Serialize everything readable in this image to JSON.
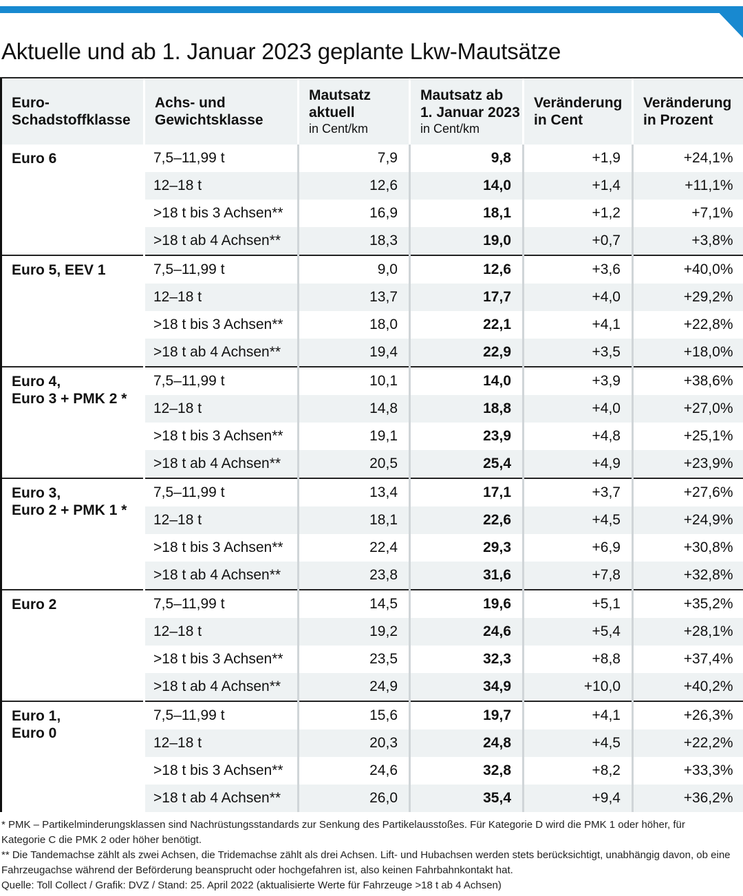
{
  "title": "Aktuelle und ab 1. Januar 2023 geplante Lkw-Mautsätze",
  "header": {
    "col1": "Euro-\nSchadstoffklasse",
    "col2": "Achs- und\nGewichtsklasse",
    "col3": "Mautsatz\naktuell",
    "col3_unit": "in Cent/km",
    "col4": "Mautsatz ab\n1. Januar 2023",
    "col4_unit": "in Cent/km",
    "col5": "Veränderung\nin Cent",
    "col6": "Veränderung\nin Prozent"
  },
  "groups": [
    {
      "label": "Euro 6",
      "rows": [
        {
          "cls": "7,5–11,99 t",
          "current": "7,9",
          "new": "9,8",
          "cent": "+1,9",
          "pct": "+24,1%"
        },
        {
          "cls": "12–18 t",
          "current": "12,6",
          "new": "14,0",
          "cent": "+1,4",
          "pct": "+11,1%"
        },
        {
          "cls": ">18 t bis 3 Achsen**",
          "current": "16,9",
          "new": "18,1",
          "cent": "+1,2",
          "pct": "+7,1%"
        },
        {
          "cls": ">18 t ab 4 Achsen**",
          "current": "18,3",
          "new": "19,0",
          "cent": "+0,7",
          "pct": "+3,8%"
        }
      ]
    },
    {
      "label": "Euro 5, EEV 1",
      "rows": [
        {
          "cls": "7,5–11,99 t",
          "current": "9,0",
          "new": "12,6",
          "cent": "+3,6",
          "pct": "+40,0%"
        },
        {
          "cls": "12–18 t",
          "current": "13,7",
          "new": "17,7",
          "cent": "+4,0",
          "pct": "+29,2%"
        },
        {
          "cls": ">18 t bis 3 Achsen**",
          "current": "18,0",
          "new": "22,1",
          "cent": "+4,1",
          "pct": "+22,8%"
        },
        {
          "cls": ">18 t ab 4 Achsen**",
          "current": "19,4",
          "new": "22,9",
          "cent": "+3,5",
          "pct": "+18,0%"
        }
      ]
    },
    {
      "label": "Euro 4,\nEuro 3 + PMK 2 *",
      "rows": [
        {
          "cls": "7,5–11,99 t",
          "current": "10,1",
          "new": "14,0",
          "cent": "+3,9",
          "pct": "+38,6%"
        },
        {
          "cls": "12–18 t",
          "current": "14,8",
          "new": "18,8",
          "cent": "+4,0",
          "pct": "+27,0%"
        },
        {
          "cls": ">18 t bis 3 Achsen**",
          "current": "19,1",
          "new": "23,9",
          "cent": "+4,8",
          "pct": "+25,1%"
        },
        {
          "cls": ">18 t ab 4 Achsen**",
          "current": "20,5",
          "new": "25,4",
          "cent": "+4,9",
          "pct": "+23,9%"
        }
      ]
    },
    {
      "label": "Euro 3,\nEuro 2 + PMK 1 *",
      "rows": [
        {
          "cls": "7,5–11,99 t",
          "current": "13,4",
          "new": "17,1",
          "cent": "+3,7",
          "pct": "+27,6%"
        },
        {
          "cls": "12–18 t",
          "current": "18,1",
          "new": "22,6",
          "cent": "+4,5",
          "pct": "+24,9%"
        },
        {
          "cls": ">18 t bis 3 Achsen**",
          "current": "22,4",
          "new": "29,3",
          "cent": "+6,9",
          "pct": "+30,8%"
        },
        {
          "cls": ">18 t ab 4 Achsen**",
          "current": "23,8",
          "new": "31,6",
          "cent": "+7,8",
          "pct": "+32,8%"
        }
      ]
    },
    {
      "label": "Euro 2",
      "rows": [
        {
          "cls": "7,5–11,99 t",
          "current": "14,5",
          "new": "19,6",
          "cent": "+5,1",
          "pct": "+35,2%"
        },
        {
          "cls": "12–18 t",
          "current": "19,2",
          "new": "24,6",
          "cent": "+5,4",
          "pct": "+28,1%"
        },
        {
          "cls": ">18 t bis 3 Achsen**",
          "current": "23,5",
          "new": "32,3",
          "cent": "+8,8",
          "pct": "+37,4%"
        },
        {
          "cls": ">18 t ab 4 Achsen**",
          "current": "24,9",
          "new": "34,9",
          "cent": "+10,0",
          "pct": "+40,2%"
        }
      ]
    },
    {
      "label": "Euro 1,\nEuro 0",
      "rows": [
        {
          "cls": "7,5–11,99 t",
          "current": "15,6",
          "new": "19,7",
          "cent": "+4,1",
          "pct": "+26,3%"
        },
        {
          "cls": "12–18 t",
          "current": "20,3",
          "new": "24,8",
          "cent": "+4,5",
          "pct": "+22,2%"
        },
        {
          "cls": ">18 t bis 3 Achsen**",
          "current": "24,6",
          "new": "32,8",
          "cent": "+8,2",
          "pct": "+33,3%"
        },
        {
          "cls": ">18 t ab 4 Achsen**",
          "current": "26,0",
          "new": "35,4",
          "cent": "+9,4",
          "pct": "+36,2%"
        }
      ]
    }
  ],
  "footnotes": {
    "pmk": "* PMK – Partikelminderungsklassen sind Nachrüstungsstandards zur Senkung des Partikelausstoßes. Für Kategorie D wird die PMK 1 oder höher, für Kategorie C die PMK 2 oder höher benötigt.",
    "axles": "** Die Tandemachse zählt als zwei Achsen, die Tridemachse zählt als drei Achsen. Lift- und Hubachsen werden stets berücksichtigt, unabhängig davon, ob eine Fahrzeugachse während der Beförderung beansprucht oder hochgefahren ist, also keinen Fahrbahnkontakt hat.",
    "source": "Quelle: Toll Collect / Grafik: DVZ / Stand: 25. April 2022 (aktualisierte Werte für Fahrzeuge >18 t ab 4 Achsen)"
  },
  "colors": {
    "accent": "#1889d0",
    "row_shade": "#eef2f3"
  }
}
